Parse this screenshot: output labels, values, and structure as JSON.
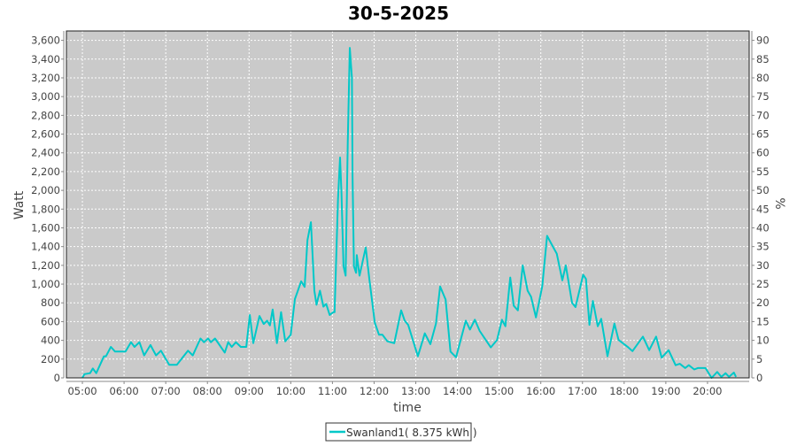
{
  "chart_data": {
    "type": "line",
    "title": "30-5-2025",
    "xlabel": "time",
    "ylabel": "Watt",
    "y2label": "%",
    "xlim": [
      "04:37",
      "21:00"
    ],
    "ylim": [
      0,
      3700
    ],
    "y2lim": [
      0,
      92.5
    ],
    "x_ticks": [
      "05:00",
      "06:00",
      "07:00",
      "08:00",
      "09:00",
      "10:00",
      "11:00",
      "12:00",
      "13:00",
      "14:00",
      "15:00",
      "16:00",
      "17:00",
      "18:00",
      "19:00",
      "20:00"
    ],
    "y_ticks": [
      "0",
      "200",
      "400",
      "600",
      "800",
      "1,000",
      "1,200",
      "1,400",
      "1,600",
      "1,800",
      "2,000",
      "2,200",
      "2,400",
      "2,600",
      "2,800",
      "3,000",
      "3,200",
      "3,400",
      "3,600"
    ],
    "y2_ticks": [
      "0",
      "5",
      "10",
      "15",
      "20",
      "25",
      "30",
      "35",
      "40",
      "45",
      "50",
      "55",
      "60",
      "65",
      "70",
      "75",
      "80",
      "85",
      "90"
    ],
    "grid": true,
    "legend_position": "bottom",
    "colors": {
      "series": "#00c8c8",
      "plot_bg": "#cacaca",
      "grid": "#ffffff"
    },
    "series": [
      {
        "name": "Swanland1( 8.375 kWh )",
        "x": [
          "05:00",
          "05:03",
          "05:11",
          "05:15",
          "05:20",
          "05:31",
          "05:34",
          "05:41",
          "05:47",
          "06:02",
          "06:10",
          "06:15",
          "06:22",
          "06:29",
          "06:38",
          "06:46",
          "06:53",
          "07:05",
          "07:16",
          "07:32",
          "07:39",
          "07:50",
          "07:55",
          "08:01",
          "08:05",
          "08:11",
          "08:25",
          "08:30",
          "08:35",
          "08:41",
          "08:48",
          "08:56",
          "09:01",
          "09:06",
          "09:15",
          "09:21",
          "09:26",
          "09:30",
          "09:34",
          "09:40",
          "09:46",
          "09:52",
          "10:00",
          "10:06",
          "10:15",
          "10:20",
          "10:24",
          "10:29",
          "10:34",
          "10:37",
          "10:42",
          "10:47",
          "10:51",
          "10:56",
          "11:01",
          "11:03",
          "11:08",
          "11:11",
          "11:13",
          "11:16",
          "11:19",
          "11:22",
          "11:25",
          "11:28",
          "11:29",
          "11:31",
          "11:34",
          "11:35",
          "11:39",
          "11:42",
          "11:48",
          "11:53",
          "12:01",
          "12:07",
          "12:12",
          "12:19",
          "12:29",
          "12:39",
          "12:44",
          "12:49",
          "13:03",
          "13:13",
          "13:21",
          "13:29",
          "13:35",
          "13:43",
          "13:50",
          "13:58",
          "14:12",
          "14:18",
          "14:25",
          "14:32",
          "14:48",
          "14:57",
          "15:04",
          "15:09",
          "15:16",
          "15:21",
          "15:27",
          "15:34",
          "15:41",
          "15:46",
          "15:53",
          "16:02",
          "16:09",
          "16:16",
          "16:23",
          "16:31",
          "16:36",
          "16:45",
          "16:50",
          "17:01",
          "17:05",
          "17:10",
          "17:15",
          "17:22",
          "17:27",
          "17:36",
          "17:46",
          "17:52",
          "18:06",
          "18:12",
          "18:27",
          "18:36",
          "18:46",
          "18:54",
          "19:04",
          "19:14",
          "19:20",
          "19:28",
          "19:33",
          "19:41",
          "19:46",
          "19:57",
          "20:06",
          "20:14",
          "20:20",
          "20:26",
          "20:31",
          "20:38",
          "20:41"
        ],
        "y": [
          0,
          40,
          50,
          100,
          50,
          230,
          230,
          330,
          280,
          280,
          380,
          330,
          380,
          240,
          350,
          240,
          290,
          140,
          140,
          290,
          240,
          420,
          380,
          420,
          380,
          420,
          270,
          380,
          330,
          380,
          330,
          330,
          670,
          370,
          660,
          575,
          610,
          560,
          730,
          370,
          700,
          390,
          460,
          840,
          1030,
          970,
          1470,
          1660,
          930,
          780,
          930,
          760,
          790,
          670,
          700,
          700,
          1910,
          2350,
          1970,
          1190,
          1090,
          2510,
          3520,
          3200,
          2160,
          1190,
          1120,
          1310,
          1090,
          1190,
          1390,
          1060,
          590,
          460,
          460,
          390,
          370,
          720,
          610,
          565,
          230,
          475,
          360,
          580,
          975,
          835,
          280,
          220,
          610,
          515,
          620,
          500,
          325,
          405,
          620,
          550,
          1070,
          770,
          720,
          1200,
          930,
          865,
          645,
          975,
          1515,
          1420,
          1325,
          1040,
          1200,
          800,
          755,
          1100,
          1055,
          565,
          820,
          550,
          630,
          230,
          580,
          405,
          325,
          285,
          440,
          295,
          440,
          215,
          295,
          135,
          150,
          105,
          135,
          90,
          105,
          105,
          0,
          63,
          10,
          50,
          10,
          57,
          10
        ]
      }
    ]
  }
}
